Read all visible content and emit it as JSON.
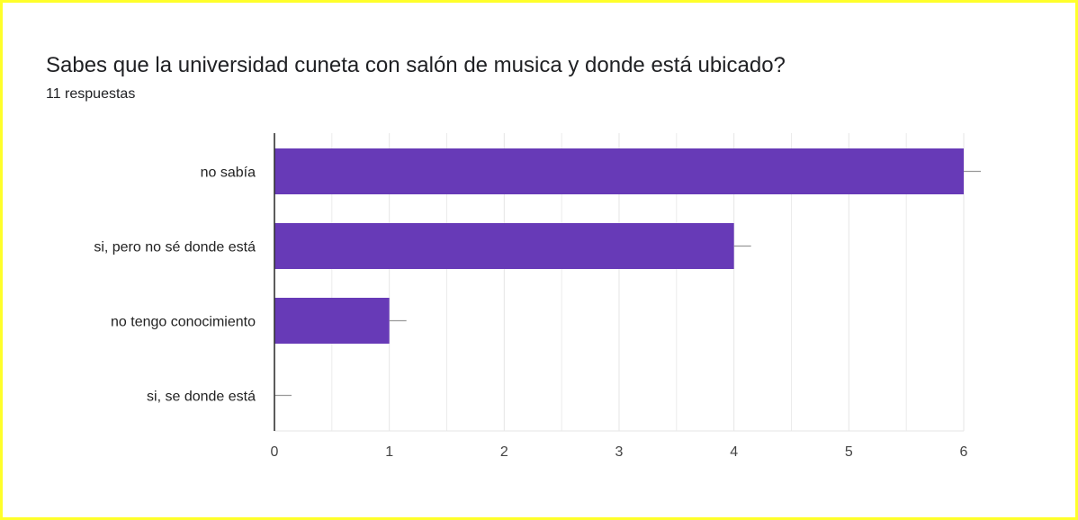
{
  "question": {
    "title": "Sabes que la universidad cuneta con salón de musica y donde está ubicado?",
    "responses": "11 respuestas"
  },
  "colors": {
    "bar": "#673ab7",
    "frame": "#ffff2a",
    "grid": "#e6e6e6",
    "axis": "#333333",
    "whisker": "#999999"
  },
  "chart_data": {
    "type": "bar",
    "orientation": "horizontal",
    "title": "Sabes que la universidad cuneta con salón de musica y donde está ubicado?",
    "subtitle": "11 respuestas",
    "categories": [
      "no sabía",
      "si, pero no sé donde está",
      "no tengo conocimiento",
      "si, se donde está"
    ],
    "values": [
      6,
      4,
      1,
      0
    ],
    "xlim": [
      0,
      6
    ],
    "xticks": [
      "0",
      "1",
      "2",
      "3",
      "4",
      "5",
      "6"
    ],
    "grid": true,
    "xlabel": "",
    "ylabel": ""
  }
}
